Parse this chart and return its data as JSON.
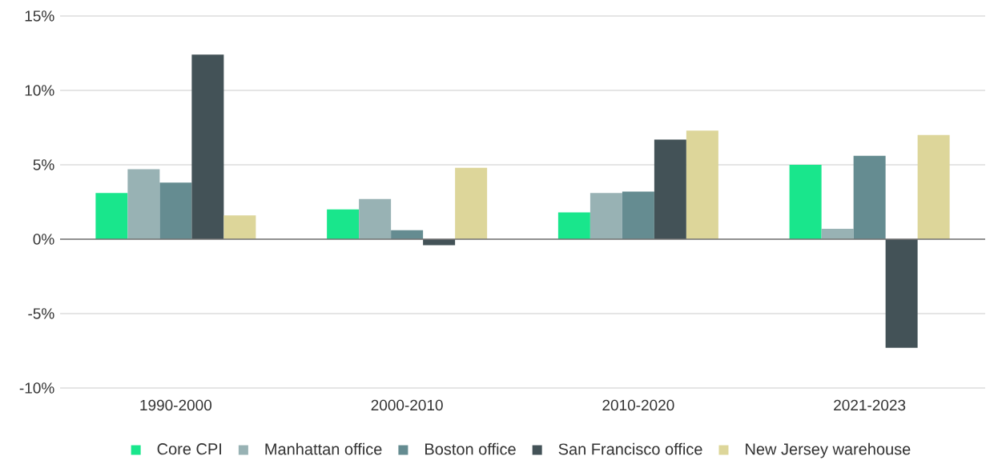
{
  "chart_data": {
    "type": "bar",
    "categories": [
      "1990-2000",
      "2000-2010",
      "2010-2020",
      "2021-2023"
    ],
    "series": [
      {
        "name": "Core CPI",
        "color": "#19e68c",
        "values": [
          3.1,
          2.0,
          1.8,
          5.0
        ]
      },
      {
        "name": "Manhattan office",
        "color": "#98b2b4",
        "values": [
          4.7,
          2.7,
          3.1,
          0.7
        ]
      },
      {
        "name": "Boston office",
        "color": "#658c91",
        "values": [
          3.8,
          0.6,
          3.2,
          5.6
        ]
      },
      {
        "name": "San Francisco office",
        "color": "#435257",
        "values": [
          12.4,
          -0.4,
          6.7,
          -7.3
        ]
      },
      {
        "name": "New Jersey warehouse",
        "color": "#ddd69a",
        "values": [
          1.6,
          4.8,
          7.3,
          7.0
        ]
      }
    ],
    "ylim": [
      -10,
      15
    ],
    "yticks": [
      {
        "value": -10,
        "label": "-10%"
      },
      {
        "value": -5,
        "label": "-5%"
      },
      {
        "value": 0,
        "label": "0%"
      },
      {
        "value": 5,
        "label": "5%"
      },
      {
        "value": 10,
        "label": "10%"
      },
      {
        "value": 15,
        "label": "15%"
      }
    ],
    "grid": "y",
    "legend": "bottom"
  }
}
